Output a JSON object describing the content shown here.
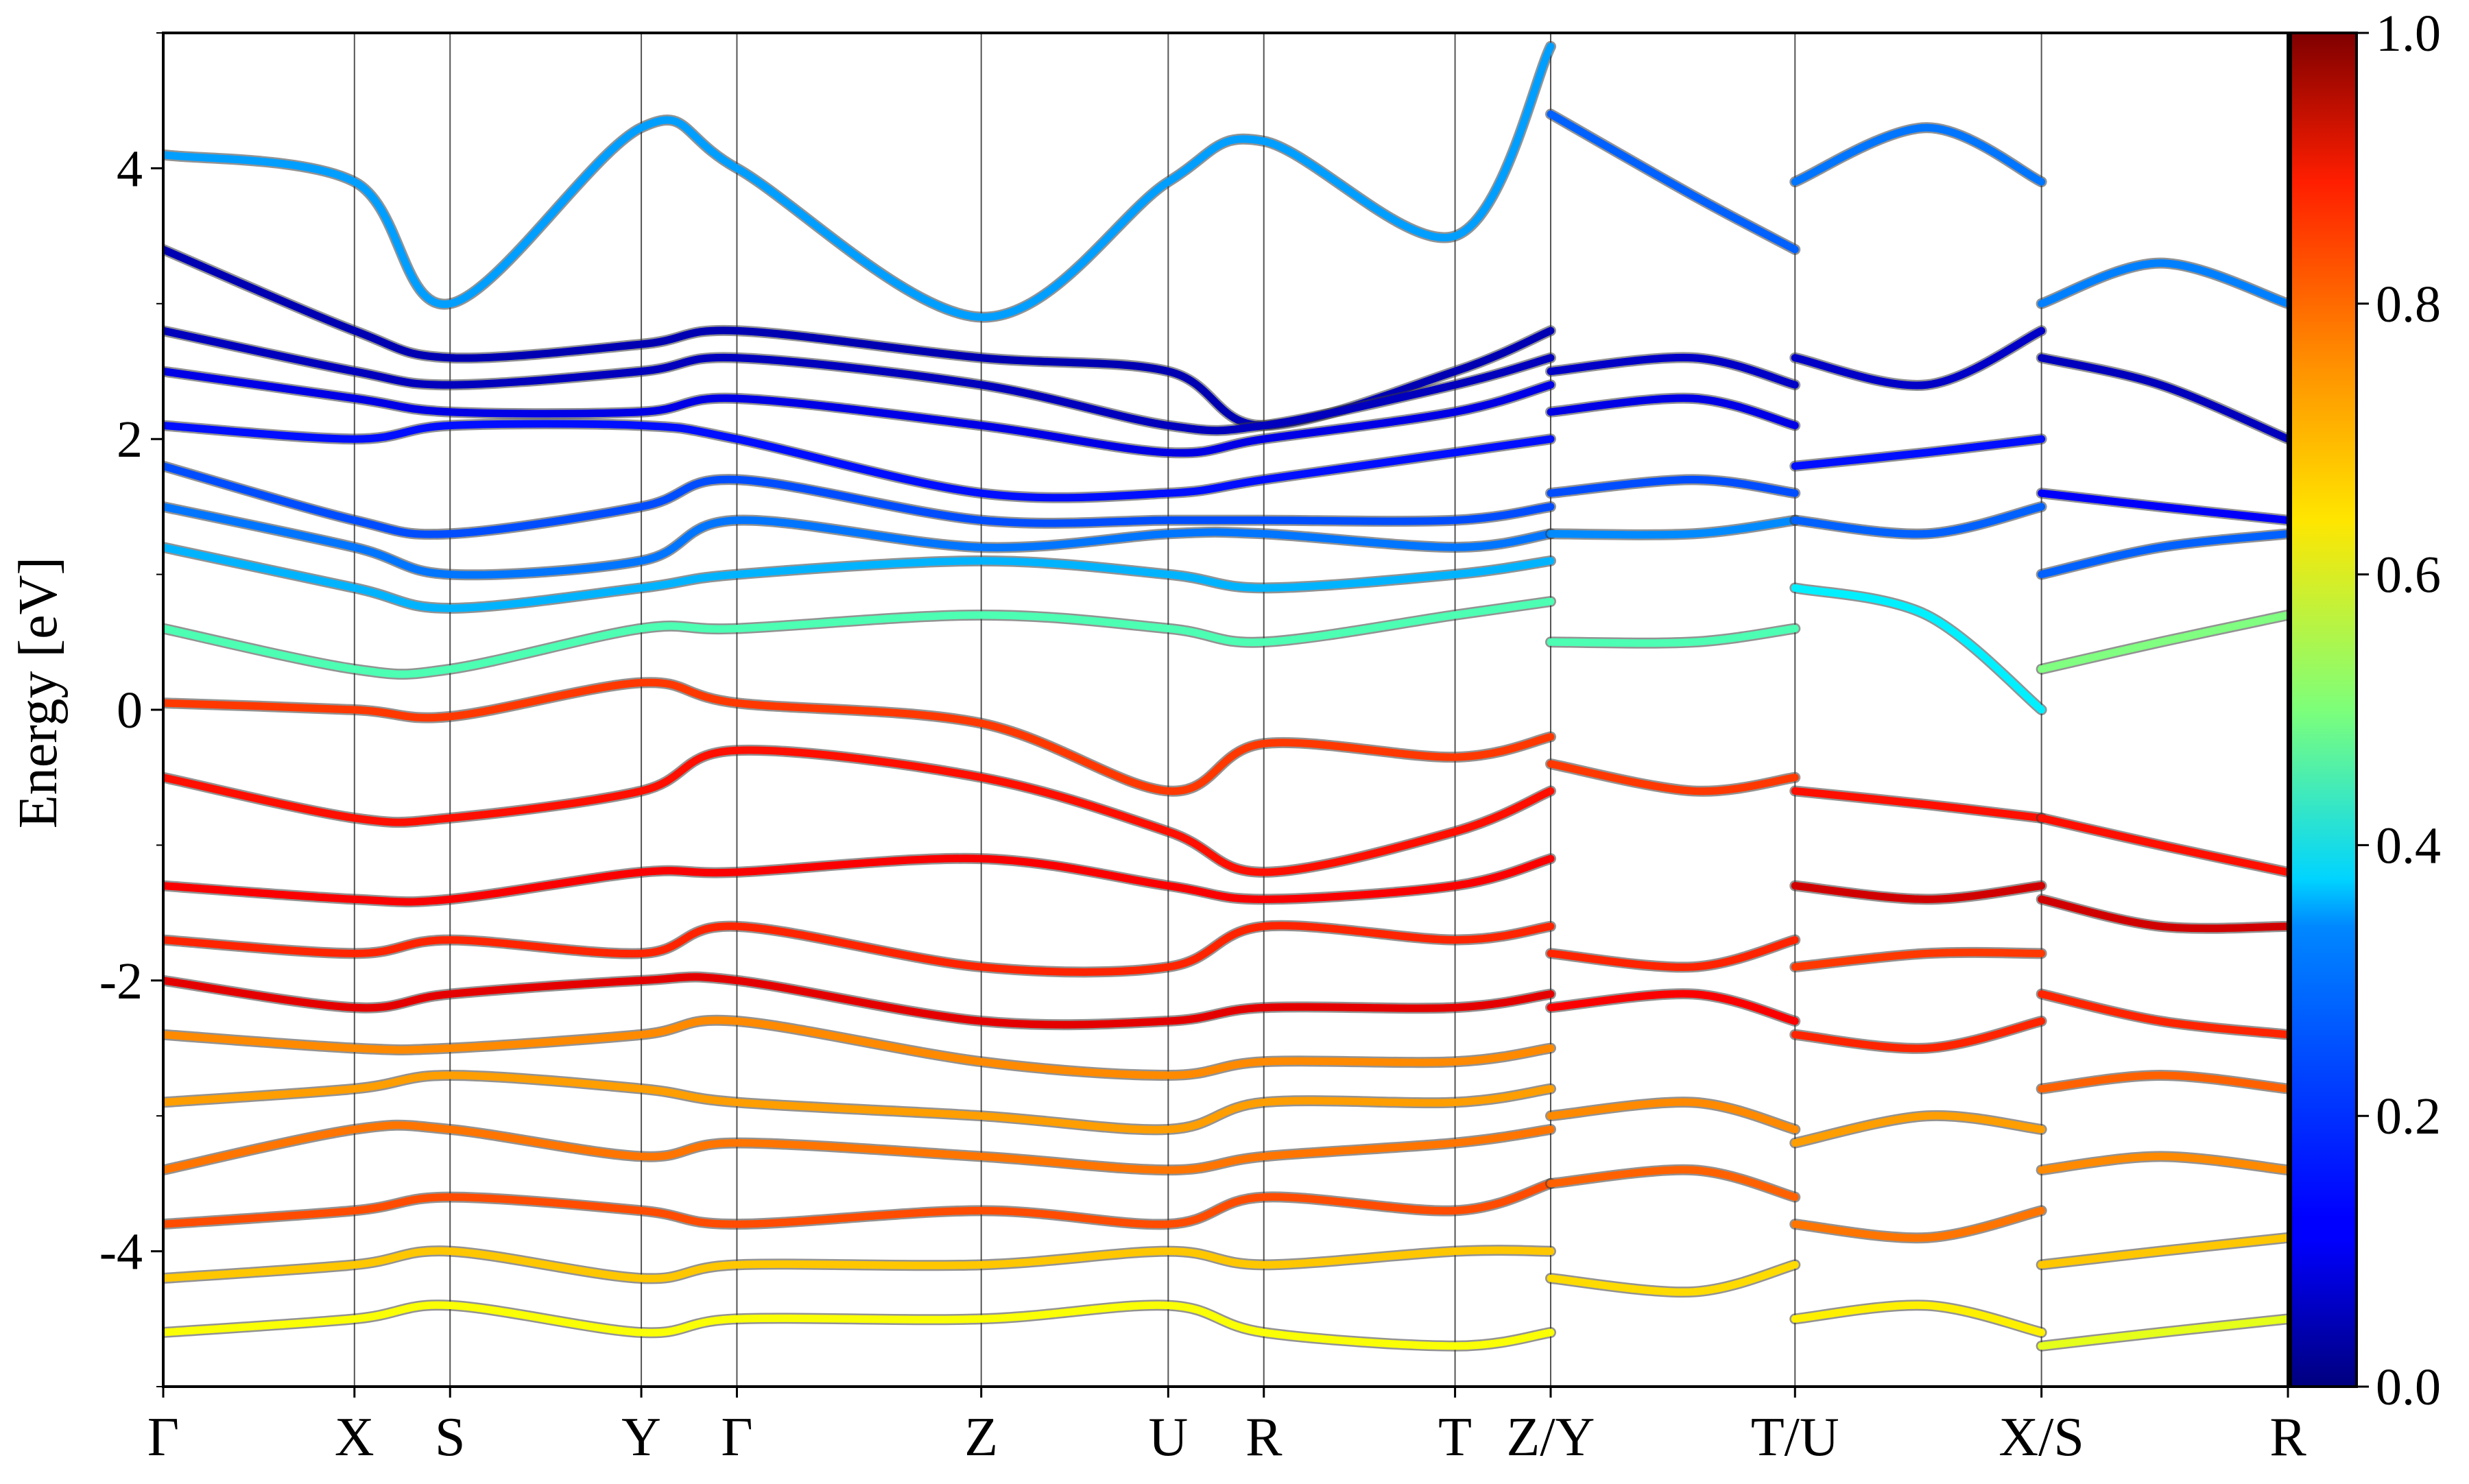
{
  "chart_data": {
    "type": "line",
    "title": "",
    "ylabel": "Energy [eV]",
    "xlabel": "",
    "ylim": [
      -5,
      5
    ],
    "y_ticks": [
      -4,
      -2,
      0,
      2,
      4
    ],
    "y_tick_labels": [
      "-4",
      "-2",
      "0",
      "2",
      "4"
    ],
    "kpath_labels": [
      "Γ",
      "X",
      "S",
      "Y",
      "Γ",
      "Z",
      "U",
      "R",
      "T",
      "Z/Y",
      "T/U",
      "X/S",
      "R"
    ],
    "kpath_positions": [
      0,
      0.09,
      0.135,
      0.225,
      0.27,
      0.385,
      0.473,
      0.518,
      0.608,
      0.653,
      0.768,
      0.884,
      1.0
    ],
    "segment_breaks": [
      0.653,
      0.768,
      0.884
    ],
    "colorbar": {
      "colormap": "jet",
      "range": [
        0.0,
        1.0
      ],
      "ticks": [
        0.0,
        0.2,
        0.4,
        0.6,
        0.8,
        1.0
      ],
      "tick_labels": [
        "0.0",
        "0.2",
        "0.4",
        "0.6",
        "0.8",
        "1.0"
      ]
    },
    "series": [
      {
        "x": [
          0,
          0.09,
          0.135,
          0.225,
          0.27,
          0.385,
          0.473,
          0.518,
          0.608,
          0.653
        ],
        "values": [
          4.1,
          3.9,
          3.0,
          4.3,
          4.0,
          2.9,
          3.9,
          4.2,
          3.5,
          4.9
        ],
        "weight": 0.28
      },
      {
        "x": [
          0,
          0.09,
          0.135,
          0.225,
          0.27,
          0.385,
          0.473,
          0.518,
          0.608,
          0.653
        ],
        "values": [
          3.4,
          2.8,
          2.6,
          2.7,
          2.8,
          2.6,
          2.5,
          2.1,
          2.5,
          2.8
        ],
        "weight": 0.05
      },
      {
        "x": [
          0,
          0.09,
          0.135,
          0.225,
          0.27,
          0.385,
          0.473,
          0.518,
          0.608,
          0.653
        ],
        "values": [
          2.8,
          2.5,
          2.4,
          2.5,
          2.6,
          2.4,
          2.1,
          2.1,
          2.4,
          2.6
        ],
        "weight": 0.06
      },
      {
        "x": [
          0,
          0.09,
          0.135,
          0.225,
          0.27,
          0.385,
          0.473,
          0.518,
          0.608,
          0.653
        ],
        "values": [
          2.5,
          2.3,
          2.2,
          2.2,
          2.3,
          2.1,
          1.9,
          2.0,
          2.2,
          2.4
        ],
        "weight": 0.1
      },
      {
        "x": [
          0,
          0.09,
          0.135,
          0.225,
          0.27,
          0.385,
          0.473,
          0.518,
          0.608,
          0.653
        ],
        "values": [
          2.1,
          2.0,
          2.1,
          2.1,
          2.0,
          1.6,
          1.6,
          1.7,
          1.9,
          2.0
        ],
        "weight": 0.14
      },
      {
        "x": [
          0,
          0.09,
          0.135,
          0.225,
          0.27,
          0.385,
          0.473,
          0.518,
          0.608,
          0.653
        ],
        "values": [
          1.8,
          1.4,
          1.3,
          1.5,
          1.7,
          1.4,
          1.4,
          1.4,
          1.4,
          1.5
        ],
        "weight": 0.2
      },
      {
        "x": [
          0,
          0.09,
          0.135,
          0.225,
          0.27,
          0.385,
          0.473,
          0.518,
          0.608,
          0.653
        ],
        "values": [
          1.5,
          1.2,
          1.0,
          1.1,
          1.4,
          1.2,
          1.3,
          1.3,
          1.2,
          1.3
        ],
        "weight": 0.24
      },
      {
        "x": [
          0,
          0.09,
          0.135,
          0.225,
          0.27,
          0.385,
          0.473,
          0.518,
          0.608,
          0.653
        ],
        "values": [
          1.2,
          0.9,
          0.75,
          0.9,
          1.0,
          1.1,
          1.0,
          0.9,
          1.0,
          1.1
        ],
        "weight": 0.3
      },
      {
        "x": [
          0,
          0.09,
          0.135,
          0.225,
          0.27,
          0.385,
          0.473,
          0.518,
          0.608,
          0.653
        ],
        "values": [
          0.6,
          0.3,
          0.3,
          0.6,
          0.6,
          0.7,
          0.6,
          0.5,
          0.7,
          0.8
        ],
        "weight": 0.45
      },
      {
        "x": [
          0,
          0.09,
          0.135,
          0.225,
          0.27,
          0.385,
          0.473,
          0.518,
          0.608,
          0.653
        ],
        "values": [
          0.05,
          0.0,
          -0.05,
          0.2,
          0.05,
          -0.1,
          -0.6,
          -0.25,
          -0.35,
          -0.2
        ],
        "weight": 0.82
      },
      {
        "x": [
          0,
          0.09,
          0.135,
          0.225,
          0.27,
          0.385,
          0.473,
          0.518,
          0.608,
          0.653
        ],
        "values": [
          -0.5,
          -0.8,
          -0.8,
          -0.6,
          -0.3,
          -0.5,
          -0.9,
          -1.2,
          -0.9,
          -0.6
        ],
        "weight": 0.86
      },
      {
        "x": [
          0,
          0.09,
          0.135,
          0.225,
          0.27,
          0.385,
          0.473,
          0.518,
          0.608,
          0.653
        ],
        "values": [
          -1.3,
          -1.4,
          -1.4,
          -1.2,
          -1.2,
          -1.1,
          -1.3,
          -1.4,
          -1.3,
          -1.1
        ],
        "weight": 0.88
      },
      {
        "x": [
          0,
          0.09,
          0.135,
          0.225,
          0.27,
          0.385,
          0.473,
          0.518,
          0.608,
          0.653
        ],
        "values": [
          -1.7,
          -1.8,
          -1.7,
          -1.8,
          -1.6,
          -1.9,
          -1.9,
          -1.6,
          -1.7,
          -1.6
        ],
        "weight": 0.84
      },
      {
        "x": [
          0,
          0.09,
          0.135,
          0.225,
          0.27,
          0.385,
          0.473,
          0.518,
          0.608,
          0.653
        ],
        "values": [
          -2.0,
          -2.2,
          -2.1,
          -2.0,
          -2.0,
          -2.3,
          -2.3,
          -2.2,
          -2.2,
          -2.1
        ],
        "weight": 0.9
      },
      {
        "x": [
          0,
          0.09,
          0.135,
          0.225,
          0.27,
          0.385,
          0.473,
          0.518,
          0.608,
          0.653
        ],
        "values": [
          -2.4,
          -2.5,
          -2.5,
          -2.4,
          -2.3,
          -2.6,
          -2.7,
          -2.6,
          -2.6,
          -2.5
        ],
        "weight": 0.74
      },
      {
        "x": [
          0,
          0.09,
          0.135,
          0.225,
          0.27,
          0.385,
          0.473,
          0.518,
          0.608,
          0.653
        ],
        "values": [
          -2.9,
          -2.8,
          -2.7,
          -2.8,
          -2.9,
          -3.0,
          -3.1,
          -2.9,
          -2.9,
          -2.8
        ],
        "weight": 0.72
      },
      {
        "x": [
          0,
          0.09,
          0.135,
          0.225,
          0.27,
          0.385,
          0.473,
          0.518,
          0.608,
          0.653
        ],
        "values": [
          -3.4,
          -3.1,
          -3.1,
          -3.3,
          -3.2,
          -3.3,
          -3.4,
          -3.3,
          -3.2,
          -3.1
        ],
        "weight": 0.76
      },
      {
        "x": [
          0,
          0.09,
          0.135,
          0.225,
          0.27,
          0.385,
          0.473,
          0.518,
          0.608,
          0.653
        ],
        "values": [
          -3.8,
          -3.7,
          -3.6,
          -3.7,
          -3.8,
          -3.7,
          -3.8,
          -3.6,
          -3.7,
          -3.5
        ],
        "weight": 0.8
      },
      {
        "x": [
          0,
          0.09,
          0.135,
          0.225,
          0.27,
          0.385,
          0.473,
          0.518,
          0.608,
          0.653
        ],
        "values": [
          -4.2,
          -4.1,
          -4.0,
          -4.2,
          -4.1,
          -4.1,
          -4.0,
          -4.1,
          -4.0,
          -4.0
        ],
        "weight": 0.68
      },
      {
        "x": [
          0,
          0.09,
          0.135,
          0.225,
          0.27,
          0.385,
          0.473,
          0.518,
          0.608,
          0.653
        ],
        "values": [
          -4.6,
          -4.5,
          -4.4,
          -4.6,
          -4.5,
          -4.5,
          -4.4,
          -4.6,
          -4.7,
          -4.6
        ],
        "weight": 0.62
      },
      {
        "x": [
          0.653,
          0.72,
          0.768
        ],
        "values": [
          4.4,
          3.8,
          3.4
        ],
        "weight": 0.22
      },
      {
        "x": [
          0.653,
          0.72,
          0.768
        ],
        "values": [
          2.5,
          2.6,
          2.4
        ],
        "weight": 0.07
      },
      {
        "x": [
          0.653,
          0.72,
          0.768
        ],
        "values": [
          2.2,
          2.3,
          2.1
        ],
        "weight": 0.1
      },
      {
        "x": [
          0.653,
          0.72,
          0.768
        ],
        "values": [
          1.6,
          1.7,
          1.6
        ],
        "weight": 0.2
      },
      {
        "x": [
          0.653,
          0.72,
          0.768
        ],
        "values": [
          1.3,
          1.3,
          1.4
        ],
        "weight": 0.26
      },
      {
        "x": [
          0.653,
          0.72,
          0.768
        ],
        "values": [
          0.5,
          0.5,
          0.6
        ],
        "weight": 0.45
      },
      {
        "x": [
          0.653,
          0.72,
          0.768
        ],
        "values": [
          -0.4,
          -0.6,
          -0.5
        ],
        "weight": 0.82
      },
      {
        "x": [
          0.653,
          0.72,
          0.768
        ],
        "values": [
          -1.8,
          -1.9,
          -1.7
        ],
        "weight": 0.84
      },
      {
        "x": [
          0.653,
          0.72,
          0.768
        ],
        "values": [
          -2.2,
          -2.1,
          -2.3
        ],
        "weight": 0.88
      },
      {
        "x": [
          0.653,
          0.72,
          0.768
        ],
        "values": [
          -3.0,
          -2.9,
          -3.1
        ],
        "weight": 0.74
      },
      {
        "x": [
          0.653,
          0.72,
          0.768
        ],
        "values": [
          -3.5,
          -3.4,
          -3.6
        ],
        "weight": 0.78
      },
      {
        "x": [
          0.653,
          0.72,
          0.768
        ],
        "values": [
          -4.2,
          -4.3,
          -4.1
        ],
        "weight": 0.66
      },
      {
        "x": [
          0.768,
          0.83,
          0.884
        ],
        "values": [
          3.9,
          4.3,
          3.9
        ],
        "weight": 0.24
      },
      {
        "x": [
          0.768,
          0.83,
          0.884
        ],
        "values": [
          2.6,
          2.4,
          2.8
        ],
        "weight": 0.07
      },
      {
        "x": [
          0.768,
          0.83,
          0.884
        ],
        "values": [
          1.8,
          1.9,
          2.0
        ],
        "weight": 0.14
      },
      {
        "x": [
          0.768,
          0.83,
          0.884
        ],
        "values": [
          1.4,
          1.3,
          1.5
        ],
        "weight": 0.22
      },
      {
        "x": [
          0.768,
          0.83,
          0.884
        ],
        "values": [
          0.9,
          0.7,
          0.0
        ],
        "weight": 0.36
      },
      {
        "x": [
          0.768,
          0.83,
          0.884
        ],
        "values": [
          -0.6,
          -0.7,
          -0.8
        ],
        "weight": 0.86
      },
      {
        "x": [
          0.768,
          0.83,
          0.884
        ],
        "values": [
          -1.3,
          -1.4,
          -1.3
        ],
        "weight": 0.92
      },
      {
        "x": [
          0.768,
          0.83,
          0.884
        ],
        "values": [
          -1.9,
          -1.8,
          -1.8
        ],
        "weight": 0.82
      },
      {
        "x": [
          0.768,
          0.83,
          0.884
        ],
        "values": [
          -2.4,
          -2.5,
          -2.3
        ],
        "weight": 0.84
      },
      {
        "x": [
          0.768,
          0.83,
          0.884
        ],
        "values": [
          -3.2,
          -3.0,
          -3.1
        ],
        "weight": 0.72
      },
      {
        "x": [
          0.768,
          0.83,
          0.884
        ],
        "values": [
          -3.8,
          -3.9,
          -3.7
        ],
        "weight": 0.76
      },
      {
        "x": [
          0.768,
          0.83,
          0.884
        ],
        "values": [
          -4.5,
          -4.4,
          -4.6
        ],
        "weight": 0.64
      },
      {
        "x": [
          0.884,
          0.94,
          1.0
        ],
        "values": [
          3.0,
          3.3,
          3.0
        ],
        "weight": 0.25
      },
      {
        "x": [
          0.884,
          0.94,
          1.0
        ],
        "values": [
          2.6,
          2.4,
          2.0
        ],
        "weight": 0.06
      },
      {
        "x": [
          0.884,
          0.94,
          1.0
        ],
        "values": [
          1.6,
          1.5,
          1.4
        ],
        "weight": 0.12
      },
      {
        "x": [
          0.884,
          0.94,
          1.0
        ],
        "values": [
          1.0,
          1.2,
          1.3
        ],
        "weight": 0.22
      },
      {
        "x": [
          0.884,
          0.94,
          1.0
        ],
        "values": [
          0.3,
          0.5,
          0.7
        ],
        "weight": 0.5
      },
      {
        "x": [
          0.884,
          0.94,
          1.0
        ],
        "values": [
          -0.8,
          -1.0,
          -1.2
        ],
        "weight": 0.86
      },
      {
        "x": [
          0.884,
          0.94,
          1.0
        ],
        "values": [
          -1.4,
          -1.6,
          -1.6
        ],
        "weight": 0.92
      },
      {
        "x": [
          0.884,
          0.94,
          1.0
        ],
        "values": [
          -2.1,
          -2.3,
          -2.4
        ],
        "weight": 0.84
      },
      {
        "x": [
          0.884,
          0.94,
          1.0
        ],
        "values": [
          -2.8,
          -2.7,
          -2.8
        ],
        "weight": 0.78
      },
      {
        "x": [
          0.884,
          0.94,
          1.0
        ],
        "values": [
          -3.4,
          -3.3,
          -3.4
        ],
        "weight": 0.74
      },
      {
        "x": [
          0.884,
          0.94,
          1.0
        ],
        "values": [
          -4.1,
          -4.0,
          -3.9
        ],
        "weight": 0.68
      },
      {
        "x": [
          0.884,
          0.94,
          1.0
        ],
        "values": [
          -4.7,
          -4.6,
          -4.5
        ],
        "weight": 0.6
      }
    ]
  }
}
